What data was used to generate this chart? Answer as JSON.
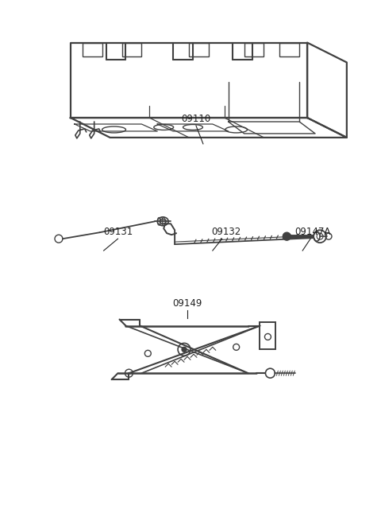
{
  "background_color": "#ffffff",
  "line_color": "#404040",
  "text_color": "#222222",
  "label_fontsize": 8.5,
  "figsize": [
    4.8,
    6.55
  ],
  "dpi": 100
}
